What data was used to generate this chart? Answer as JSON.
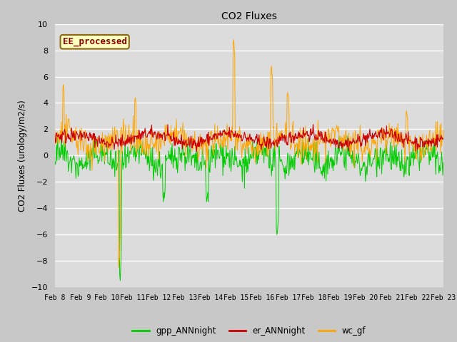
{
  "title": "CO2 Fluxes",
  "ylabel": "CO2 Fluxes (urology/m2/s)",
  "ylim": [
    -10,
    10
  ],
  "yticks": [
    -10,
    -8,
    -6,
    -4,
    -2,
    0,
    2,
    4,
    6,
    8,
    10
  ],
  "xtick_labels": [
    "Feb 8",
    "Feb 9",
    "Feb 10",
    "Feb 11",
    "Feb 12",
    "Feb 13",
    "Feb 14",
    "Feb 15",
    "Feb 16",
    "Feb 17",
    "Feb 18",
    "Feb 19",
    "Feb 20",
    "Feb 21",
    "Feb 22",
    "Feb 23"
  ],
  "annotation_text": "EE_processed",
  "annotation_color": "#8B0000",
  "annotation_bg": "#FFFFC0",
  "fig_bg_color": "#C8C8C8",
  "plot_bg": "#DCDCDC",
  "grid_color": "white",
  "colors": {
    "gpp_ANNnight": "#00CC00",
    "er_ANNnight": "#CC0000",
    "wc_gf": "#FFA500"
  },
  "legend_labels": [
    "gpp_ANNnight",
    "er_ANNnight",
    "wc_gf"
  ],
  "n_points": 720,
  "seed": 42
}
